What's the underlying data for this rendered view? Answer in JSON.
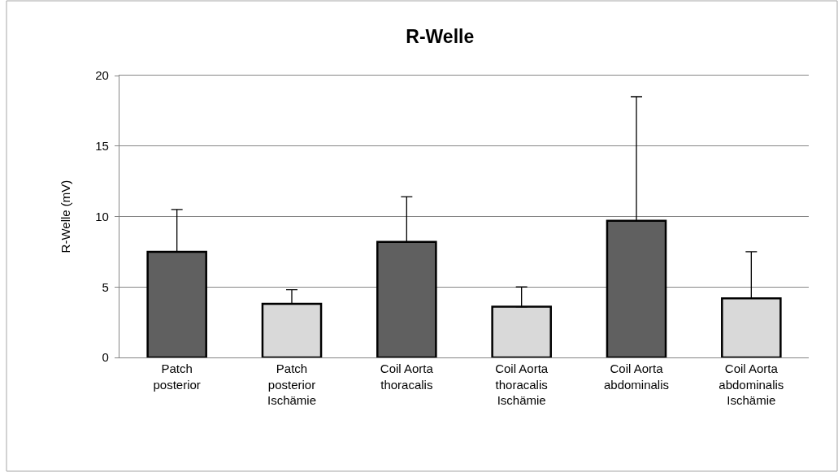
{
  "chart_data": {
    "type": "bar",
    "title": "R-Welle",
    "ylabel": "R-Welle (mV)",
    "categories": [
      "Patch posterior",
      "Patch posterior Ischämie",
      "Coil Aorta thoracalis",
      "Coil Aorta thoracalis Ischämie",
      "Coil Aorta abdominalis",
      "Coil Aorta abdominalis Ischämie"
    ],
    "values": [
      7.5,
      3.8,
      8.2,
      3.6,
      9.7,
      4.2
    ],
    "colors": [
      "#606060",
      "#d9d9d9",
      "#606060",
      "#d9d9d9",
      "#606060",
      "#d9d9d9"
    ],
    "errors": [
      [
        7.5,
        10.5
      ],
      [
        3.8,
        4.8
      ],
      [
        8.2,
        11.4
      ],
      [
        3.6,
        5.0
      ],
      [
        9.7,
        18.5
      ],
      [
        4.2,
        7.5
      ]
    ],
    "ylim": [
      0,
      20
    ],
    "yticks": [
      0,
      5,
      10,
      15,
      20
    ],
    "grid": "y"
  }
}
